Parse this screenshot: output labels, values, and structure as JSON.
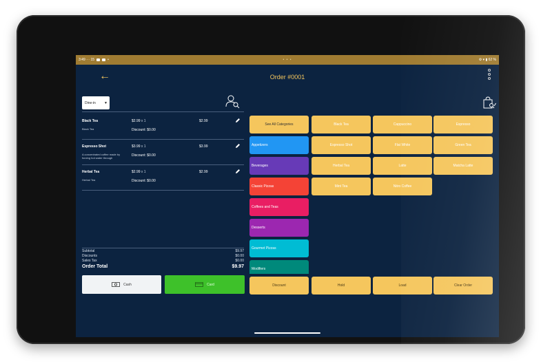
{
  "status_bar": {
    "time": "3:49 ⋯ 15",
    "center": "• • •",
    "right": "⚙ ▾ ▮ 62 %"
  },
  "header": {
    "title": "Order #0001"
  },
  "order_type": {
    "selected": "Dine-in"
  },
  "order_items": [
    {
      "name": "Black Tea",
      "desc": "Black Tea",
      "unit_price": "$2.99",
      "qty": "x 1",
      "discount": "Discount: $0.00",
      "total": "$2.99"
    },
    {
      "name": "Espresso Shot",
      "desc": "A concentrated coffee made by forcing hot water through",
      "unit_price": "$3.99",
      "qty": "x 1",
      "discount": "Discount: $0.00",
      "total": "$3.99"
    },
    {
      "name": "Herbal Tea",
      "desc": "Herbal Tea",
      "unit_price": "$2.99",
      "qty": "x 1",
      "discount": "Discount: $0.00",
      "total": "$2.99"
    }
  ],
  "totals": {
    "subtotal_label": "Subtotal",
    "subtotal": "$9.97",
    "discounts_label": "Discounts",
    "discounts": "$0.00",
    "tax_label": "Sales Tax",
    "tax": "$0.00",
    "total_label": "Order Total",
    "total": "$9.97"
  },
  "payment": {
    "cash": "Cash",
    "card": "Card"
  },
  "categories": [
    {
      "label": "See All Categories",
      "color": "#f5c65d"
    },
    {
      "label": "Appetizers",
      "color": "#2196f3"
    },
    {
      "label": "Beverages",
      "color": "#673ab7"
    },
    {
      "label": "Classic Pizzas",
      "color": "#f44336"
    },
    {
      "label": "Coffees and Teas",
      "color": "#e91e63"
    },
    {
      "label": "Desserts",
      "color": "#9c27b0"
    },
    {
      "label": "Gourmet Pizzas",
      "color": "#00bcd4"
    },
    {
      "label": "Modifiers",
      "color": "#00897b"
    }
  ],
  "products": [
    "Black Tea",
    "Cappuccino",
    "Espresso",
    "Espresso Shot",
    "Flat White",
    "Green Tea",
    "Herbal Tea",
    "Latte",
    "Matcha Latte",
    "Mint Tea",
    "Nitro Coffee"
  ],
  "actions": [
    "Discount",
    "Hold",
    "Load",
    "Clear Order"
  ],
  "colors": {
    "background": "#0c2340",
    "accent": "#f5c65d",
    "status_bar": "#a07c32",
    "card_button": "#3ec12a"
  }
}
